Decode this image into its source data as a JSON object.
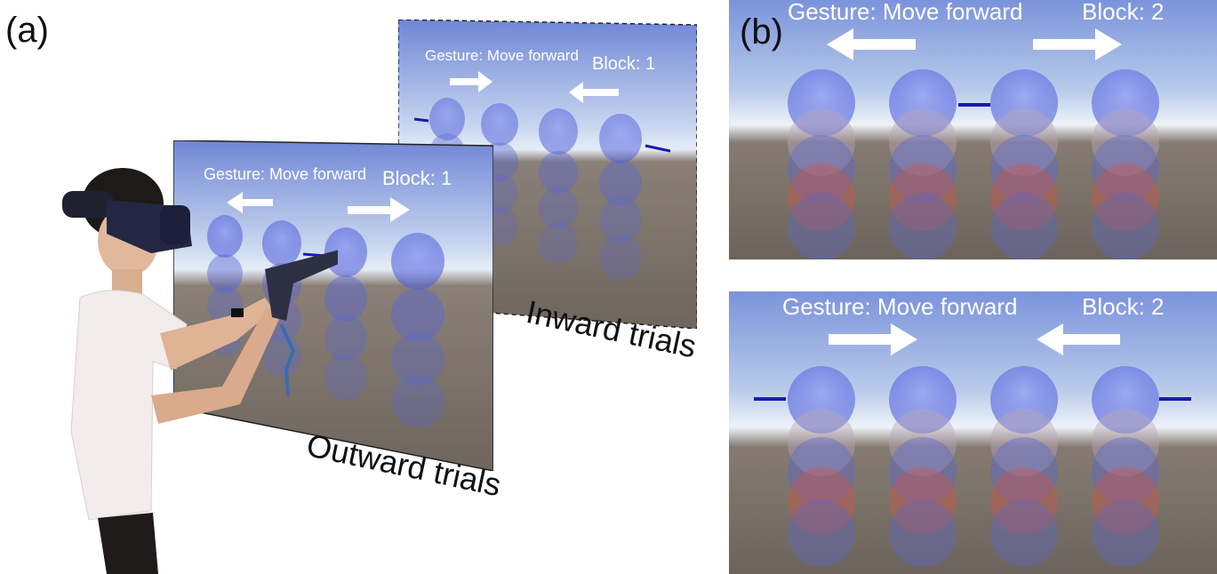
{
  "figure": {
    "label_a": "(a)",
    "label_b": "(b)"
  },
  "inward_screen": {
    "gesture_text": "Gesture: Move forward",
    "block_text": "Block: 1",
    "caption": "Inward trials"
  },
  "outward_screen": {
    "gesture_text": "Gesture: Move forward",
    "block_text": "Block: 1",
    "caption": "Outward trials"
  },
  "panel_top": {
    "gesture_text": "Gesture: Move forward",
    "block_text": "Block: 2"
  },
  "panel_bottom": {
    "gesture_text": "Gesture: Move forward",
    "block_text": "Block: 2"
  },
  "colors": {
    "sky_top": "#6f86d6",
    "sky_horizon": "#dfe9f5",
    "ground": "#7a7068",
    "sphere_blue": "#5f6fe0",
    "sphere_red": "#e05040",
    "marker": "#1a1ab0"
  }
}
